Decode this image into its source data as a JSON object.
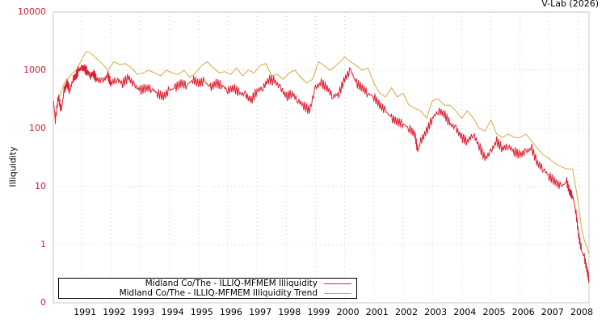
{
  "credit": "V-Lab (2026)",
  "chart_data": {
    "type": "line",
    "title": "",
    "xlabel": "",
    "ylabel": "Illiquidity",
    "yscale": "log",
    "ylim": [
      0.1,
      10000
    ],
    "yticks": [
      "10000",
      "1000",
      "100",
      "10",
      "1",
      "0"
    ],
    "xticks": [
      "1991",
      "1992",
      "1993",
      "1994",
      "1995",
      "1996",
      "1997",
      "1998",
      "1999",
      "2000",
      "2001",
      "2002",
      "2003",
      "2004",
      "2005",
      "2006",
      "2007",
      "2008"
    ],
    "xlim": [
      1990.03,
      2008.36
    ],
    "grid": true,
    "legend_position": "bottom-left",
    "series": [
      {
        "name": "Midland Co/The - ILLIQ-MFMEM Illiquidity",
        "color": "#dd2233",
        "x": [
          1990.03,
          1990.1,
          1990.2,
          1990.3,
          1990.4,
          1990.5,
          1990.6,
          1990.7,
          1990.8,
          1990.9,
          1991.0,
          1991.1,
          1991.2,
          1991.3,
          1991.4,
          1991.5,
          1991.7,
          1991.9,
          1992.0,
          1992.2,
          1992.4,
          1992.6,
          1992.8,
          1993.0,
          1993.2,
          1993.4,
          1993.6,
          1993.8,
          1994.0,
          1994.2,
          1994.4,
          1994.6,
          1994.8,
          1995.0,
          1995.2,
          1995.4,
          1995.6,
          1995.8,
          1996.0,
          1996.2,
          1996.4,
          1996.6,
          1996.8,
          1997.0,
          1997.2,
          1997.4,
          1997.6,
          1997.8,
          1998.0,
          1998.2,
          1998.4,
          1998.6,
          1998.8,
          1999.0,
          1999.2,
          1999.4,
          1999.6,
          1999.8,
          2000.0,
          2000.2,
          2000.4,
          2000.6,
          2000.8,
          2001.0,
          2001.2,
          2001.4,
          2001.6,
          2001.8,
          2002.0,
          2002.2,
          2002.4,
          2002.5,
          2002.6,
          2002.8,
          2003.0,
          2003.2,
          2003.4,
          2003.6,
          2003.8,
          2004.0,
          2004.2,
          2004.4,
          2004.6,
          2004.8,
          2005.0,
          2005.2,
          2005.4,
          2005.6,
          2005.8,
          2006.0,
          2006.2,
          2006.4,
          2006.6,
          2006.8,
          2007.0,
          2007.2,
          2007.4,
          2007.6,
          2007.7,
          2007.8,
          2007.9,
          2008.0,
          2008.1,
          2008.2,
          2008.3,
          2008.36
        ],
        "values": [
          300,
          140,
          350,
          200,
          450,
          600,
          450,
          700,
          800,
          1000,
          1100,
          1050,
          950,
          800,
          900,
          700,
          650,
          800,
          600,
          700,
          600,
          750,
          550,
          450,
          500,
          480,
          400,
          350,
          450,
          500,
          600,
          550,
          700,
          600,
          650,
          500,
          600,
          550,
          450,
          500,
          400,
          380,
          300,
          450,
          500,
          700,
          650,
          500,
          350,
          400,
          300,
          250,
          200,
          500,
          600,
          500,
          350,
          400,
          700,
          1000,
          600,
          500,
          400,
          350,
          250,
          200,
          150,
          130,
          120,
          100,
          80,
          40,
          60,
          90,
          150,
          200,
          180,
          120,
          100,
          70,
          60,
          80,
          50,
          30,
          40,
          60,
          45,
          50,
          40,
          35,
          40,
          45,
          25,
          20,
          15,
          12,
          10,
          12,
          8,
          7,
          4,
          1.5,
          0.8,
          0.6,
          0.35,
          0.25
        ]
      },
      {
        "name": "Midland Co/The - ILLIQ-MFMEM Illiquidity Trend",
        "color": "#d4aa44",
        "x": [
          1990.2,
          1990.4,
          1990.6,
          1990.8,
          1991.0,
          1991.15,
          1991.3,
          1991.5,
          1991.7,
          1991.9,
          1992.1,
          1992.3,
          1992.5,
          1992.7,
          1992.9,
          1993.1,
          1993.3,
          1993.5,
          1993.7,
          1993.9,
          1994.1,
          1994.3,
          1994.5,
          1994.7,
          1994.9,
          1995.1,
          1995.3,
          1995.5,
          1995.7,
          1995.9,
          1996.1,
          1996.3,
          1996.5,
          1996.7,
          1996.9,
          1997.1,
          1997.3,
          1997.5,
          1997.7,
          1997.9,
          1998.1,
          1998.3,
          1998.5,
          1998.7,
          1998.9,
          1999.1,
          1999.3,
          1999.5,
          1999.7,
          1999.9,
          2000.0,
          2000.2,
          2000.4,
          2000.6,
          2000.8,
          2001.0,
          2001.2,
          2001.4,
          2001.6,
          2001.8,
          2002.0,
          2002.2,
          2002.4,
          2002.6,
          2002.8,
          2003.0,
          2003.2,
          2003.4,
          2003.6,
          2003.8,
          2004.0,
          2004.2,
          2004.4,
          2004.6,
          2004.8,
          2005.0,
          2005.2,
          2005.4,
          2005.6,
          2005.8,
          2006.0,
          2006.2,
          2006.4,
          2006.6,
          2006.8,
          2007.0,
          2007.2,
          2007.4,
          2007.6,
          2007.8,
          2007.9,
          2008.0,
          2008.1,
          2008.2,
          2008.36
        ],
        "values": [
          300,
          600,
          800,
          1000,
          1500,
          2100,
          2000,
          1600,
          1300,
          1000,
          1400,
          1250,
          1300,
          1100,
          850,
          900,
          1000,
          900,
          800,
          1000,
          900,
          850,
          1000,
          750,
          900,
          1200,
          1400,
          1100,
          900,
          950,
          850,
          1100,
          800,
          1000,
          900,
          1200,
          1300,
          800,
          850,
          700,
          900,
          1000,
          750,
          600,
          700,
          1400,
          1200,
          1000,
          1200,
          1500,
          1700,
          1400,
          1200,
          1000,
          1100,
          600,
          400,
          350,
          500,
          350,
          400,
          250,
          220,
          200,
          150,
          300,
          320,
          250,
          250,
          200,
          150,
          200,
          150,
          100,
          90,
          140,
          80,
          70,
          80,
          70,
          70,
          80,
          60,
          45,
          35,
          30,
          25,
          22,
          20,
          20,
          10,
          5,
          2,
          1.2,
          0.7
        ]
      }
    ]
  },
  "legend": {
    "items": [
      {
        "label": "Midland Co/The - ILLIQ-MFMEM Illiquidity",
        "color": "#dd2233"
      },
      {
        "label": "Midland Co/The - ILLIQ-MFMEM Illiquidity Trend",
        "color": "#d4aa44"
      }
    ]
  }
}
